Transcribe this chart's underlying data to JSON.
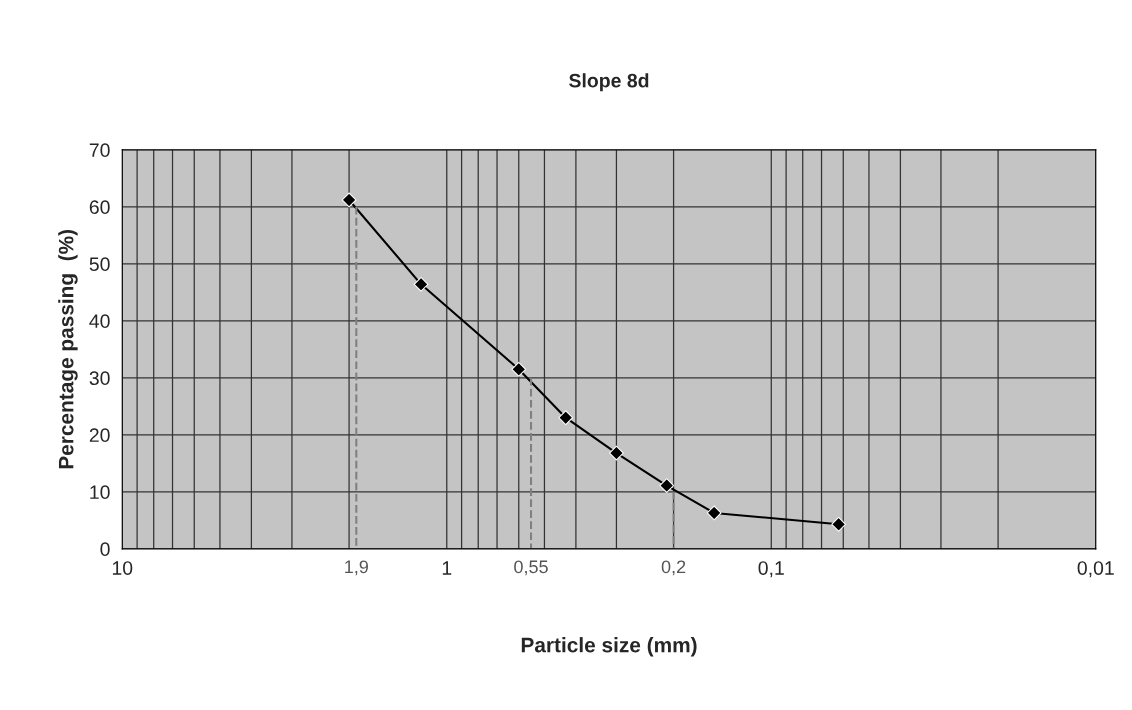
{
  "chart_data": {
    "type": "line",
    "title": "Slope 8d",
    "xlabel": "Particle size (mm)",
    "ylabel": "Percentage passing  (%)",
    "x": [
      2.0,
      1.2,
      0.6,
      0.43,
      0.3,
      0.21,
      0.15,
      0.062
    ],
    "series": [
      {
        "color": "#000000",
        "values": [
          61.2,
          46.4,
          31.5,
          23,
          16.8,
          11.1,
          6.3,
          4.3
        ]
      },
      {
        "color": "#808080",
        "x": [
          1.9,
          1.9
        ],
        "values": [
          60,
          0
        ],
        "marker": "none",
        "line_style": "dashed"
      },
      {
        "color": "#808080",
        "x": [
          0.55,
          0.55
        ],
        "values": [
          30,
          0
        ],
        "marker": "none",
        "line_style": "dashed"
      },
      {
        "color": "#808080",
        "x": [
          0.2,
          0.2
        ],
        "values": [
          10,
          0
        ],
        "marker": "none",
        "line_style": "dashed"
      }
    ],
    "log": "x",
    "xlim": [
      10,
      0.01
    ],
    "xticks": [
      {
        "value": 10,
        "label": "10"
      },
      {
        "value": 1,
        "label": "1"
      },
      {
        "value": 0.1,
        "label": "0,1"
      },
      {
        "value": 0.01,
        "label": "0,01"
      }
    ],
    "ylim": [
      0,
      70
    ],
    "yticks": [
      0,
      10,
      20,
      30,
      40,
      50,
      60,
      70
    ],
    "grid": true,
    "marker": "diamond",
    "line_style": "solid",
    "annotations": [
      {
        "text": "1,9",
        "x": 1.9,
        "y": 0
      },
      {
        "text": "0,55",
        "x": 0.55,
        "y": 0
      },
      {
        "text": "0,2",
        "x": 0.2,
        "y": 0
      }
    ]
  }
}
